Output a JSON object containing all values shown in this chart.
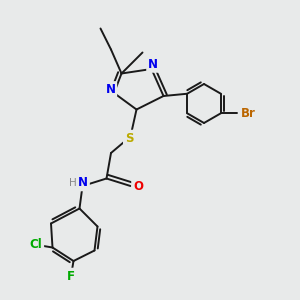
{
  "background_color": "#e8eaea",
  "bond_color": "#1a1a1a",
  "bond_width": 1.4,
  "figsize": [
    3.0,
    3.0
  ],
  "dpi": 100,
  "xlim": [
    0,
    10
  ],
  "ylim": [
    0,
    10
  ],
  "N_color": "#0000ee",
  "S_color": "#bbaa00",
  "O_color": "#ee0000",
  "Br_color": "#bb6600",
  "Cl_color": "#00aa00",
  "F_color": "#00aa00",
  "H_color": "#888888"
}
